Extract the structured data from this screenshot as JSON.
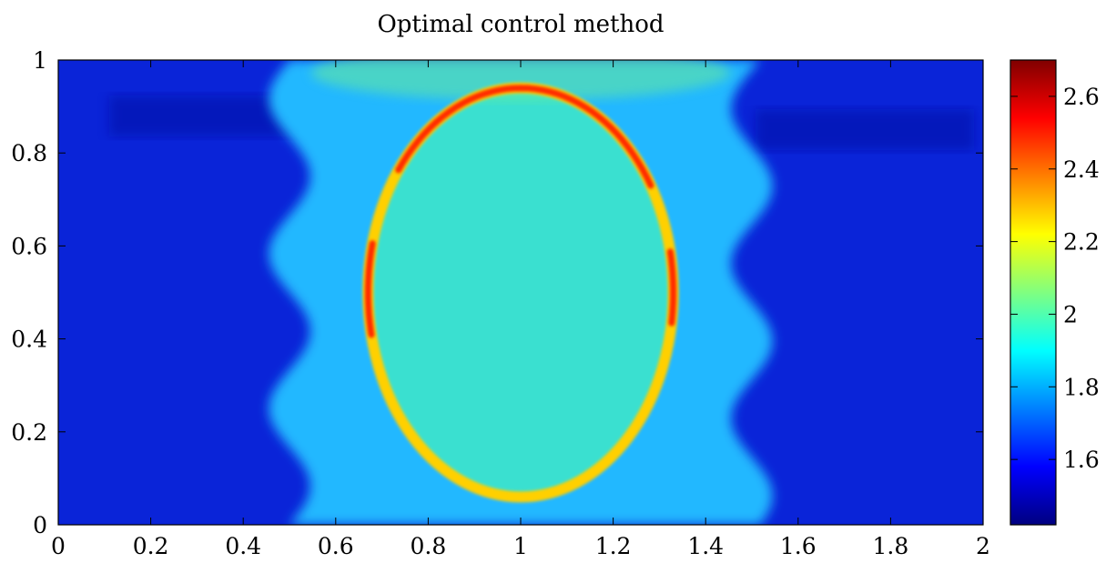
{
  "chart_data": {
    "type": "heatmap",
    "title": "Optimal control method",
    "xlabel": "",
    "ylabel": "",
    "xlim": [
      0,
      2
    ],
    "ylim": [
      0,
      1
    ],
    "x_ticks": [
      "0",
      "0.2",
      "0.4",
      "0.6",
      "0.8",
      "1",
      "1.2",
      "1.4",
      "1.6",
      "1.8",
      "2"
    ],
    "y_ticks": [
      "0",
      "0.2",
      "0.4",
      "0.6",
      "0.8",
      "1"
    ],
    "colorbar": {
      "range": [
        1.42,
        2.7
      ],
      "ticks": [
        "1.6",
        "1.8",
        "2",
        "2.2",
        "2.4",
        "2.6"
      ],
      "colormap": "jet"
    },
    "field": {
      "background_value": 1.5,
      "band": {
        "x_left_mean": 0.5,
        "x_right_mean": 1.5,
        "value": 1.85
      },
      "ellipse": {
        "center": [
          1.0,
          0.5
        ],
        "semi_axis_x": 0.33,
        "semi_axis_y": 0.44,
        "interior_value": 1.95,
        "rim_value": 2.6
      }
    },
    "grid": false,
    "legend": "colorbar-right"
  }
}
